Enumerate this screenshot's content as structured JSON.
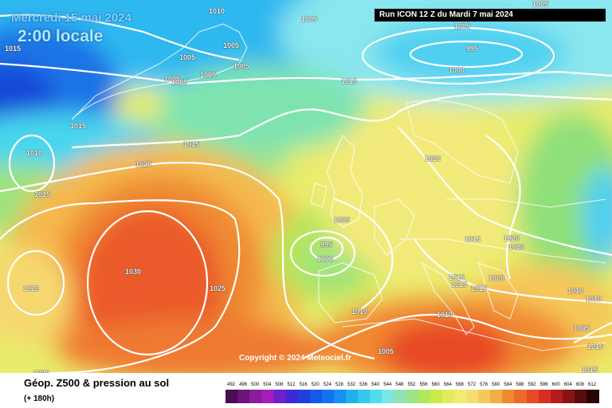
{
  "header": {
    "date": "Mercredi 15 mai 2024",
    "time": "2:00 locale",
    "run": "Run ICON 12 Z du Mardi 7 mai 2024"
  },
  "copyright": "Copyright © 2024 Meteociel.fr",
  "legend": {
    "title": "Géop. Z500 & pression au sol",
    "subtitle": "(+ 180h)",
    "ticks": [
      "492",
      "496",
      "500",
      "504",
      "508",
      "512",
      "516",
      "520",
      "524",
      "528",
      "532",
      "536",
      "540",
      "544",
      "548",
      "552",
      "556",
      "560",
      "564",
      "568",
      "572",
      "576",
      "580",
      "584",
      "588",
      "592",
      "596",
      "600",
      "604",
      "608",
      "612"
    ],
    "colors": [
      "#4b0b55",
      "#6a1378",
      "#8a1c9b",
      "#a31fb8",
      "#6f1fc8",
      "#3a2bd6",
      "#1f3fe0",
      "#1658e8",
      "#1373f0",
      "#1690f2",
      "#1fb0f0",
      "#32c8ef",
      "#50dcef",
      "#7be6e3",
      "#8fe3b4",
      "#9de38a",
      "#b2e65b",
      "#c9ea47",
      "#e0ec5a",
      "#f0ec70",
      "#f5dd72",
      "#f5c85a",
      "#f3ad43",
      "#f08a32",
      "#ec6a2a",
      "#e84a25",
      "#d92d22",
      "#b31c1c",
      "#8a1414",
      "#5a0c0c",
      "#2a0505"
    ]
  },
  "isobars": [
    {
      "value": "1010",
      "text": "1010"
    },
    {
      "value": "1005",
      "text": "1005"
    },
    {
      "value": "1005",
      "text": "1005"
    },
    {
      "value": "1015",
      "text": "1015"
    },
    {
      "value": "1005",
      "text": "1005"
    },
    {
      "value": "1005",
      "text": "1005"
    },
    {
      "value": "1005",
      "text": "1005"
    },
    {
      "value": "1005",
      "text": "1005"
    },
    {
      "value": "1005",
      "text": "1005"
    },
    {
      "value": "1005",
      "text": "1005"
    },
    {
      "value": "1005",
      "text": "1005"
    },
    {
      "value": "995",
      "text": "995"
    },
    {
      "value": "1000",
      "text": "1000"
    },
    {
      "value": "1010",
      "text": "1010"
    },
    {
      "value": "1015",
      "text": "1015"
    },
    {
      "value": "1015",
      "text": "1015"
    },
    {
      "value": "1010",
      "text": "1010"
    },
    {
      "value": "1020",
      "text": "1020"
    },
    {
      "value": "1015",
      "text": "1015"
    },
    {
      "value": "1020",
      "text": "1020"
    },
    {
      "value": "1005",
      "text": "1005"
    },
    {
      "value": "995",
      "text": "995"
    },
    {
      "value": "1000",
      "text": "1000"
    },
    {
      "value": "1030",
      "text": "1030"
    },
    {
      "value": "1020",
      "text": "1020"
    },
    {
      "value": "1025",
      "text": "1025"
    },
    {
      "value": "1015",
      "text": "1015"
    },
    {
      "value": "1020",
      "text": "1020"
    },
    {
      "value": "1020",
      "text": "1020"
    },
    {
      "value": "1015",
      "text": "1015"
    },
    {
      "value": "1015",
      "text": "1015"
    },
    {
      "value": "1020",
      "text": "1020"
    },
    {
      "value": "1015",
      "text": "1015"
    },
    {
      "value": "1010",
      "text": "1010"
    },
    {
      "value": "1010",
      "text": "1010"
    },
    {
      "value": "1010",
      "text": "1010"
    },
    {
      "value": "1005",
      "text": "1005"
    },
    {
      "value": "1010",
      "text": "1010"
    },
    {
      "value": "1015",
      "text": "1015"
    },
    {
      "value": "1015",
      "text": "1015"
    },
    {
      "value": "1020",
      "text": "1020"
    },
    {
      "value": "1005",
      "text": "1005"
    }
  ]
}
